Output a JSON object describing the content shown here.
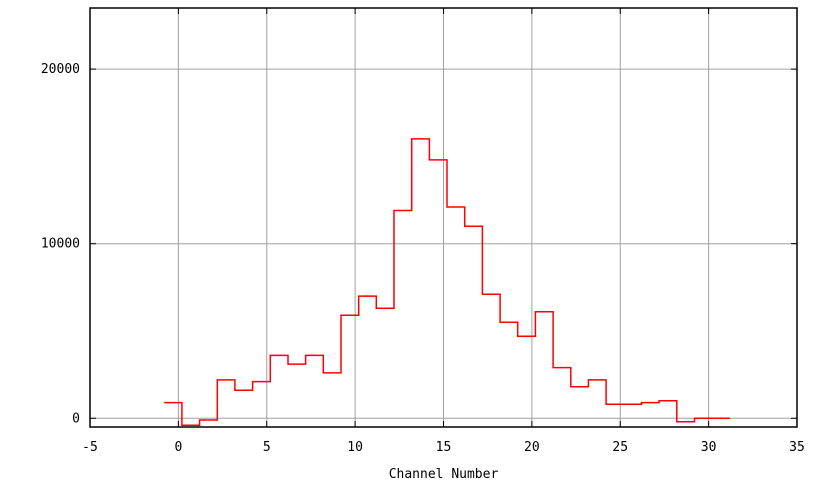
{
  "chart_data": {
    "type": "line",
    "step": true,
    "title": "",
    "xlabel": "Channel Number",
    "ylabel": "",
    "xlim": [
      -5,
      35
    ],
    "ylim": [
      -500,
      23500
    ],
    "xticks": [
      -5,
      0,
      5,
      10,
      15,
      20,
      25,
      30,
      35
    ],
    "yticks": [
      0,
      10000,
      20000
    ],
    "grid": true,
    "legend": "none",
    "series": [
      {
        "color": "#ff0000",
        "x": [
          -1,
          0,
          1,
          2,
          3,
          4,
          5,
          6,
          7,
          8,
          9,
          10,
          11,
          12,
          13,
          14,
          15,
          16,
          17,
          18,
          19,
          20,
          21,
          22,
          23,
          24,
          25,
          26,
          27,
          28,
          29,
          30
        ],
        "values": [
          900,
          -400,
          -100,
          2200,
          1600,
          2100,
          3600,
          3100,
          3600,
          2600,
          5900,
          7000,
          6300,
          11900,
          16000,
          14800,
          12100,
          11000,
          7100,
          5500,
          4700,
          6100,
          2900,
          1800,
          2200,
          800,
          800,
          900,
          1000,
          -200,
          0,
          0
        ]
      }
    ]
  },
  "colors": {
    "grid": "#a0a0a0",
    "axis": "#000000",
    "series": "#ff0000"
  }
}
